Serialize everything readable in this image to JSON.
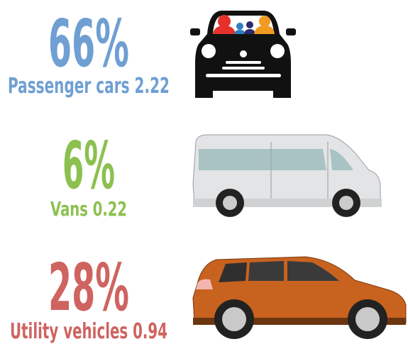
{
  "items": [
    {
      "percent": "66%",
      "label": "Passenger cars 2.22",
      "color": "#6f9fd3"
    },
    {
      "percent": "6%",
      "label": "Vans 0.22",
      "color": "#8cc04f"
    },
    {
      "percent": "28%",
      "label": "Utility vehicles 0.94",
      "color": "#cf6360"
    }
  ]
}
